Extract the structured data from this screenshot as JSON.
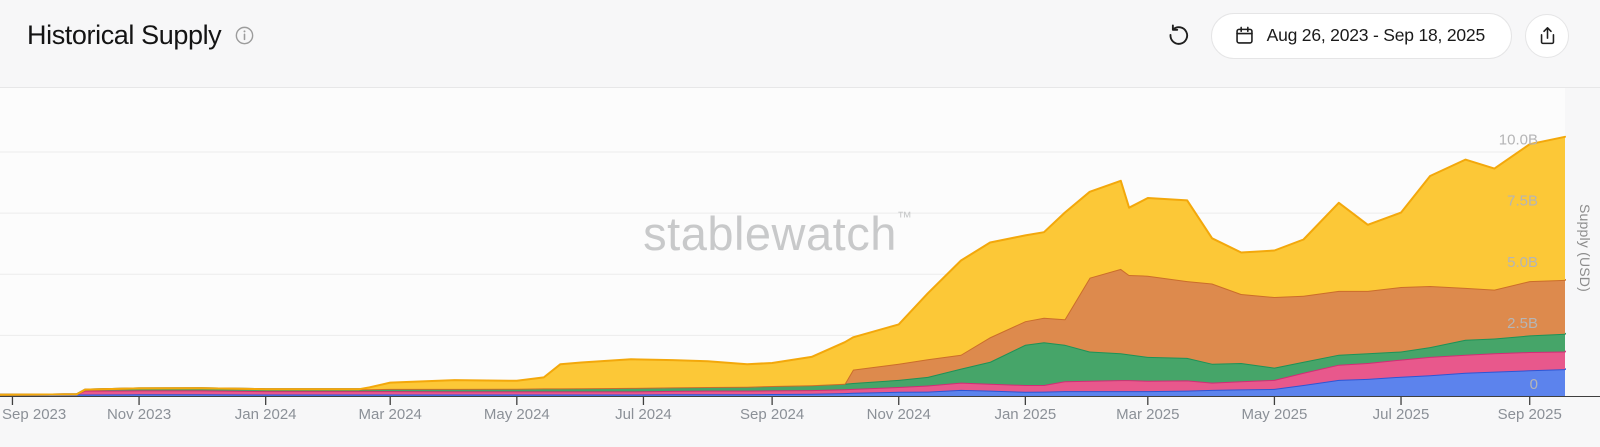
{
  "header": {
    "title": "Historical Supply",
    "date_range_label": "Aug 26, 2023 - Sep 18, 2025"
  },
  "watermark": {
    "text": "stablewatch",
    "tm": "™"
  },
  "chart_data": {
    "type": "area",
    "stacked": true,
    "title": "Historical Supply",
    "ylabel": "Supply (USD)",
    "grid": true,
    "legend_position": "none",
    "x_range": [
      "2023-08-26",
      "2025-09-18"
    ],
    "ylim_billions": [
      0,
      10.6
    ],
    "y_ticks": [
      {
        "label": "0",
        "value": 0
      },
      {
        "label": "2.5B",
        "value": 2.5
      },
      {
        "label": "5.0B",
        "value": 5
      },
      {
        "label": "7.5B",
        "value": 7.5
      },
      {
        "label": "10.0B",
        "value": 10
      }
    ],
    "x_ticks": [
      {
        "label": "Sep 2023",
        "date": "2023-09-01"
      },
      {
        "label": "Nov 2023",
        "date": "2023-11-01"
      },
      {
        "label": "Jan 2024",
        "date": "2024-01-01"
      },
      {
        "label": "Mar 2024",
        "date": "2024-03-01"
      },
      {
        "label": "May 2024",
        "date": "2024-05-01"
      },
      {
        "label": "Jul 2024",
        "date": "2024-07-01"
      },
      {
        "label": "Sep 2024",
        "date": "2024-09-01"
      },
      {
        "label": "Nov 2024",
        "date": "2024-11-01"
      },
      {
        "label": "Jan 2025",
        "date": "2025-01-01"
      },
      {
        "label": "Mar 2025",
        "date": "2025-03-01"
      },
      {
        "label": "May 2025",
        "date": "2025-05-01"
      },
      {
        "label": "Jul 2025",
        "date": "2025-07-01"
      },
      {
        "label": "Sep 2025",
        "date": "2025-09-01"
      }
    ],
    "unit": "billions of USD",
    "dates": [
      "2023-08-26",
      "2023-09-20",
      "2023-10-02",
      "2023-10-06",
      "2023-11-01",
      "2023-12-01",
      "2024-01-01",
      "2024-02-15",
      "2024-02-20",
      "2024-03-01",
      "2024-04-01",
      "2024-05-01",
      "2024-05-14",
      "2024-05-22",
      "2024-06-01",
      "2024-06-25",
      "2024-07-15",
      "2024-08-01",
      "2024-08-20",
      "2024-09-01",
      "2024-09-20",
      "2024-10-06",
      "2024-10-10",
      "2024-11-01",
      "2024-11-15",
      "2024-12-01",
      "2024-12-15",
      "2025-01-01",
      "2025-01-10",
      "2025-01-20",
      "2025-02-01",
      "2025-02-16",
      "2025-02-20",
      "2025-03-01",
      "2025-03-20",
      "2025-04-01",
      "2025-04-15",
      "2025-05-01",
      "2025-05-15",
      "2025-06-01",
      "2025-06-15",
      "2025-07-01",
      "2025-07-15",
      "2025-08-01",
      "2025-08-15",
      "2025-09-01",
      "2025-09-18"
    ],
    "series": [
      {
        "name": "blue",
        "fill": "#5c83ed",
        "stroke": "#2e55d4",
        "values": [
          0.05,
          0.06,
          0.06,
          0.06,
          0.07,
          0.07,
          0.06,
          0.06,
          0.06,
          0.06,
          0.06,
          0.06,
          0.06,
          0.06,
          0.06,
          0.06,
          0.07,
          0.07,
          0.07,
          0.08,
          0.09,
          0.12,
          0.13,
          0.17,
          0.18,
          0.25,
          0.22,
          0.17,
          0.18,
          0.2,
          0.2,
          0.2,
          0.2,
          0.2,
          0.22,
          0.25,
          0.27,
          0.29,
          0.45,
          0.66,
          0.7,
          0.79,
          0.85,
          0.95,
          1.0,
          1.05,
          1.1
        ]
      },
      {
        "name": "pink",
        "fill": "#e8588c",
        "stroke": "#d12d75",
        "values": [
          0,
          0,
          0.01,
          0.16,
          0.16,
          0.16,
          0.14,
          0.14,
          0.14,
          0.14,
          0.13,
          0.13,
          0.13,
          0.13,
          0.13,
          0.13,
          0.14,
          0.15,
          0.15,
          0.15,
          0.15,
          0.16,
          0.16,
          0.2,
          0.25,
          0.3,
          0.28,
          0.28,
          0.27,
          0.4,
          0.42,
          0.45,
          0.45,
          0.42,
          0.42,
          0.3,
          0.33,
          0.37,
          0.5,
          0.62,
          0.65,
          0.7,
          0.75,
          0.74,
          0.75,
          0.75,
          0.72
        ]
      },
      {
        "name": "green",
        "fill": "#46a569",
        "stroke": "#1d9257",
        "values": [
          0,
          0,
          0.005,
          0.04,
          0.08,
          0.09,
          0.08,
          0.08,
          0.08,
          0.09,
          0.1,
          0.11,
          0.12,
          0.12,
          0.13,
          0.14,
          0.14,
          0.15,
          0.16,
          0.18,
          0.2,
          0.22,
          0.24,
          0.29,
          0.35,
          0.57,
          0.9,
          1.65,
          1.75,
          1.5,
          1.2,
          1.1,
          1.05,
          0.98,
          0.92,
          0.77,
          0.75,
          0.5,
          0.45,
          0.41,
          0.4,
          0.33,
          0.4,
          0.61,
          0.6,
          0.68,
          0.73
        ]
      },
      {
        "name": "orange",
        "fill": "#dd8a4d",
        "stroke": "#cb6d2a",
        "values": [
          0,
          0,
          0,
          0,
          0,
          0,
          0,
          0,
          0,
          0,
          0,
          0,
          0,
          0,
          0,
          0,
          0,
          0,
          0,
          0,
          0,
          0,
          0.55,
          0.66,
          0.72,
          0.57,
          1.0,
          0.96,
          1.0,
          1.04,
          3.02,
          3.45,
          3.25,
          3.32,
          3.14,
          3.28,
          2.82,
          2.89,
          2.7,
          2.61,
          2.55,
          2.64,
          2.5,
          2.12,
          2.0,
          2.22,
          2.2
        ]
      },
      {
        "name": "yellow",
        "fill": "#fcc837",
        "stroke": "#f3a80b",
        "values": [
          0,
          0,
          0,
          0,
          0,
          0,
          0,
          0,
          0.07,
          0.26,
          0.36,
          0.32,
          0.45,
          0.99,
          1.05,
          1.17,
          1.12,
          1.05,
          0.92,
          0.94,
          1.16,
          1.7,
          1.32,
          1.61,
          2.7,
          3.85,
          3.88,
          3.51,
          3.5,
          4.36,
          3.51,
          3.6,
          2.75,
          3.18,
          3.3,
          1.85,
          1.7,
          1.9,
          2.3,
          3.6,
          2.7,
          3.04,
          4.5,
          5.25,
          4.95,
          5.6,
          5.85
        ]
      }
    ]
  },
  "style_colors": {
    "axis_line": "#3f3f3f",
    "x_label": "#8b9097",
    "y_label": "#b5b5b6",
    "gridline": "#ececec",
    "watermark": "#c8c9ca"
  }
}
